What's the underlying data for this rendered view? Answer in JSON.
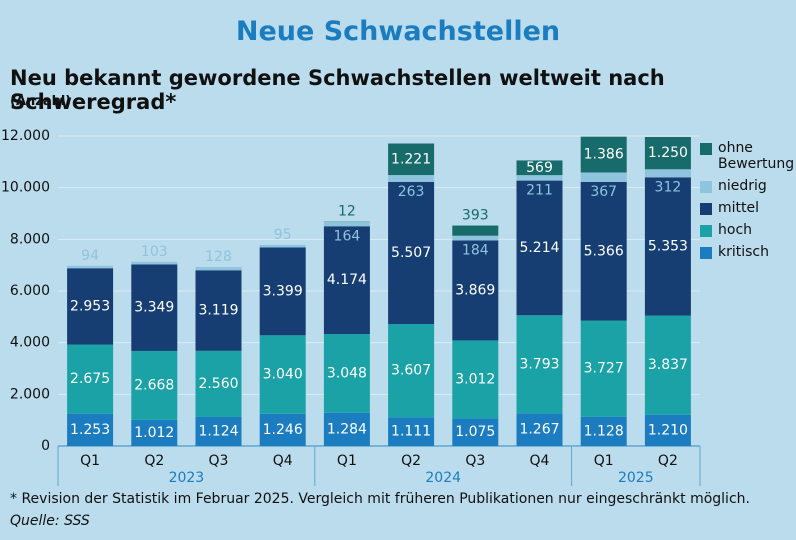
{
  "chart_data": {
    "type": "stacked-bar",
    "title": "Neue Schwachstellen",
    "subtitle": "Neu bekannt gewordene Schwachstellen weltweit nach Schweregrad*",
    "unit": "(Anzahl)",
    "groups": [
      {
        "name": "2023",
        "categories": [
          "Q1",
          "Q2",
          "Q3",
          "Q4"
        ]
      },
      {
        "name": "2024",
        "categories": [
          "Q1",
          "Q2",
          "Q3",
          "Q4"
        ]
      },
      {
        "name": "2025",
        "categories": [
          "Q1",
          "Q2"
        ]
      }
    ],
    "series": [
      {
        "name": "kritisch",
        "color": "#1b7dc0",
        "values": [
          1253,
          1012,
          1124,
          1246,
          1284,
          1111,
          1075,
          1267,
          1128,
          1210
        ],
        "value_labels": [
          "1.253",
          "1.012",
          "1.124",
          "1.246",
          "1.284",
          "1.111",
          "1.075",
          "1.267",
          "1.128",
          "1.210"
        ]
      },
      {
        "name": "hoch",
        "color": "#1aa2a6",
        "values": [
          2675,
          2668,
          2560,
          3040,
          3048,
          3607,
          3012,
          3793,
          3727,
          3837
        ],
        "value_labels": [
          "2.675",
          "2.668",
          "2.560",
          "3.040",
          "3.048",
          "3.607",
          "3.012",
          "3.793",
          "3.727",
          "3.837"
        ]
      },
      {
        "name": "mittel",
        "color": "#163e73",
        "values": [
          2953,
          3349,
          3119,
          3399,
          4174,
          5507,
          3869,
          5214,
          5366,
          5353
        ],
        "value_labels": [
          "2.953",
          "3.349",
          "3.119",
          "3.399",
          "4.174",
          "5.507",
          "3.869",
          "5.214",
          "5.366",
          "5.353"
        ]
      },
      {
        "name": "niedrig",
        "color": "#8ec4de",
        "values": [
          94,
          103,
          128,
          95,
          164,
          263,
          184,
          211,
          367,
          312
        ]
      },
      {
        "name": "ohne Bewertung",
        "color": "#176b6a",
        "values": [
          null,
          null,
          null,
          null,
          12,
          1221,
          393,
          569,
          1386,
          1250
        ],
        "value_labels": [
          null,
          null,
          null,
          null,
          "12",
          "1.221",
          "393",
          "569",
          "1.386",
          "1.250"
        ]
      }
    ],
    "ylim": [
      0,
      12500
    ],
    "yticks": [
      0,
      {
        "value": 2000,
        "label": "2.000"
      },
      {
        "value": 4000,
        "label": "4.000"
      },
      {
        "value": 6000,
        "label": "6.000"
      },
      {
        "value": 8000,
        "label": "8.000"
      },
      {
        "value": 10000,
        "label": "10.000"
      },
      {
        "value": 12000,
        "label": "12.000"
      }
    ],
    "footnote": "* Revision der Statistik im Februar 2025. Vergleich mit früheren Publikationen nur eingeschränkt möglich.",
    "source": "Quelle: SSS"
  }
}
